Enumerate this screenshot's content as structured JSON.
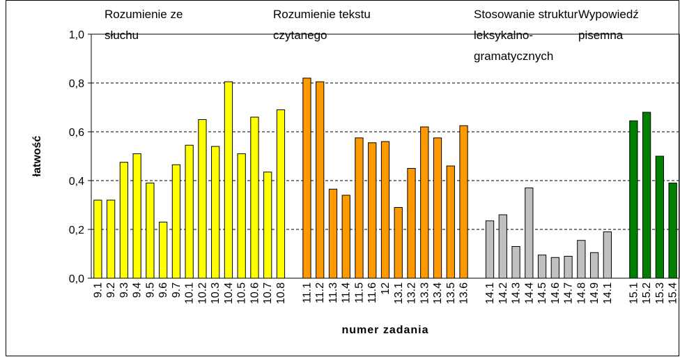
{
  "chart_data": {
    "type": "bar",
    "y_label": "łatwość",
    "x_label": "numer zadania",
    "categories": [
      "9.1",
      "9.2",
      "9.3",
      "9.4",
      "9.5",
      "9.6",
      "9.7",
      "10.1",
      "10.2",
      "10.3",
      "10.4",
      "10.5",
      "10.6",
      "10.7",
      "10.8",
      null,
      "11.1",
      "11.2",
      "11.3",
      "11.4",
      "11.5",
      "11.6",
      "12",
      "13.1",
      "13.2",
      "13.3",
      "13.4",
      "13.5",
      "13.6",
      null,
      "14.1",
      "14.2",
      "14.3",
      "14.4",
      "14.5",
      "14.6",
      "14.7",
      "14.8",
      "14.9",
      "14.1",
      null,
      "15.1",
      "15.2",
      "15.3",
      "15.4"
    ],
    "series": [
      {
        "name": "Rozumienie ze słuchu",
        "color": "#ffff00",
        "values": [
          0.32,
          0.32,
          0.475,
          0.51,
          0.39,
          0.23,
          0.465,
          0.545,
          0.65,
          0.54,
          0.805,
          0.51,
          0.66,
          0.435,
          0.69,
          null,
          null,
          null,
          null,
          null,
          null,
          null,
          null,
          null,
          null,
          null,
          null,
          null,
          null,
          null,
          null,
          null,
          null,
          null,
          null,
          null,
          null,
          null,
          null,
          null,
          null,
          null,
          null,
          null,
          null
        ]
      },
      {
        "name": "Rozumienie tekstu czytanego",
        "color": "#ff9900",
        "values": [
          null,
          null,
          null,
          null,
          null,
          null,
          null,
          null,
          null,
          null,
          null,
          null,
          null,
          null,
          null,
          null,
          0.82,
          0.805,
          0.365,
          0.34,
          0.575,
          0.555,
          0.56,
          0.29,
          0.45,
          0.62,
          0.575,
          0.46,
          0.625,
          null,
          null,
          null,
          null,
          null,
          null,
          null,
          null,
          null,
          null,
          null,
          null,
          null,
          null,
          null,
          null
        ]
      },
      {
        "name": "Stosowanie struktur leksykalno-gramatycznych",
        "color": "#c0c0c0",
        "values": [
          null,
          null,
          null,
          null,
          null,
          null,
          null,
          null,
          null,
          null,
          null,
          null,
          null,
          null,
          null,
          null,
          null,
          null,
          null,
          null,
          null,
          null,
          null,
          null,
          null,
          null,
          null,
          null,
          null,
          null,
          0.235,
          0.26,
          0.13,
          0.37,
          0.095,
          0.085,
          0.09,
          0.155,
          0.105,
          0.19,
          null,
          null,
          null,
          null,
          null
        ]
      },
      {
        "name": "Wypowiedź pisemna",
        "color": "#008000",
        "values": [
          null,
          null,
          null,
          null,
          null,
          null,
          null,
          null,
          null,
          null,
          null,
          null,
          null,
          null,
          null,
          null,
          null,
          null,
          null,
          null,
          null,
          null,
          null,
          null,
          null,
          null,
          null,
          null,
          null,
          null,
          null,
          null,
          null,
          null,
          null,
          null,
          null,
          null,
          null,
          null,
          null,
          0.645,
          0.68,
          0.5,
          0.39
        ]
      }
    ],
    "ylim": [
      0,
      1
    ],
    "yticks": [
      {
        "value": 0,
        "label": "0,0"
      },
      {
        "value": 0.2,
        "label": "0,2"
      },
      {
        "value": 0.4,
        "label": "0,4"
      },
      {
        "value": 0.6,
        "label": "0,6"
      },
      {
        "value": 0.8,
        "label": "0,8"
      },
      {
        "value": 1,
        "label": "1,0"
      }
    ],
    "grid": true
  }
}
